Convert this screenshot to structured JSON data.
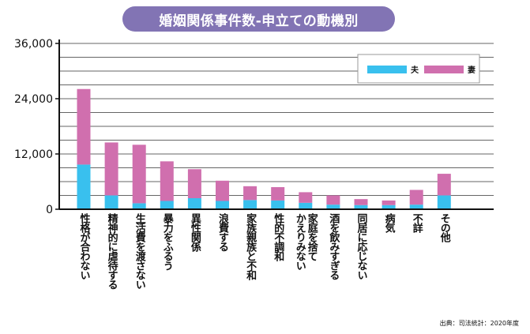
{
  "title": "婚姻関係事件数-申立ての動機別",
  "source": "出典：司法統計：2020年度",
  "colors": {
    "husband": "#39c0ee",
    "wife": "#d06fae",
    "title_bg": "#8274b4"
  },
  "legend": [
    "夫",
    "妻"
  ],
  "chart_data": {
    "type": "bar",
    "stacked": true,
    "categories": [
      "性格が合わない",
      "精神的に虐待する",
      "生活費を渡さない",
      "暴力をふるう",
      "異性関係",
      "浪費する",
      "家族親族と不和",
      "性的不調和",
      "家庭を捨てかえりみない",
      "酒を飲みすぎる",
      "同居に応じない",
      "病気",
      "不詳",
      "その他"
    ],
    "category_lines": [
      [
        "性格が合わない"
      ],
      [
        "精神的に虐待する"
      ],
      [
        "生活費を渡さない"
      ],
      [
        "暴力をふるう"
      ],
      [
        "異性関係"
      ],
      [
        "浪費する"
      ],
      [
        "家族親族と不和"
      ],
      [
        "性的不調和"
      ],
      [
        "家庭を捨て",
        "かえりみない"
      ],
      [
        "酒を飲みすぎる"
      ],
      [
        "同居に応じない"
      ],
      [
        "病気"
      ],
      [
        "不詳"
      ],
      [
        "その他"
      ]
    ],
    "series": [
      {
        "name": "夫",
        "values": [
          9700,
          3000,
          1300,
          1800,
          2400,
          1800,
          2000,
          1900,
          1400,
          1000,
          900,
          900,
          1000,
          3000
        ]
      },
      {
        "name": "妻",
        "values": [
          16400,
          11500,
          12700,
          8600,
          6300,
          4400,
          3000,
          2900,
          2300,
          2000,
          1300,
          1000,
          3200,
          4700
        ]
      }
    ],
    "yticks": [
      "0",
      "12,000",
      "24,000",
      "36,000"
    ],
    "ylim": [
      0,
      36000
    ],
    "grid": true,
    "legend_position": "top-right"
  }
}
